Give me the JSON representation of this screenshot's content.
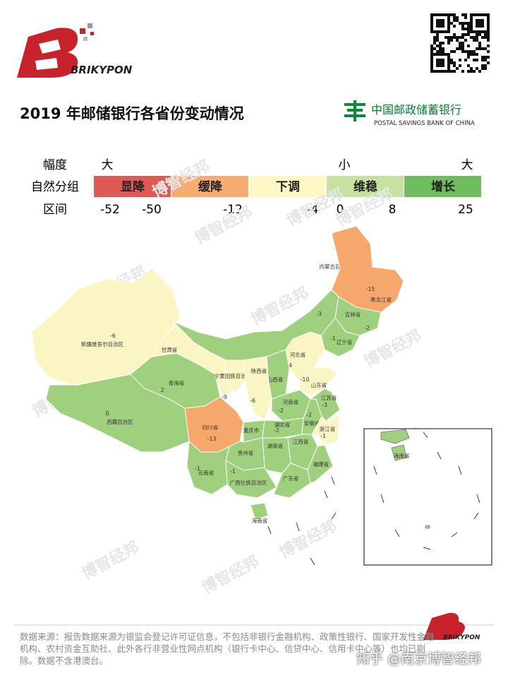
{
  "header": {
    "brand": "BRIKYPON",
    "title": "2019 年邮储银行各省份变动情况",
    "bank_name": "中国邮政储蓄银行",
    "bank_name_en": "POSTAL SAVINGS BANK OF CHINA"
  },
  "legend": {
    "scale_label": "幅度",
    "scale_marks": [
      "大",
      "小",
      "大"
    ],
    "group_label": "自然分组",
    "groups": [
      {
        "name": "显降",
        "color": "#e05a55"
      },
      {
        "name": "缓降",
        "color": "#f7ad72"
      },
      {
        "name": "下调",
        "color": "#fdf8c6"
      },
      {
        "name": "维稳",
        "color": "#c5e39f"
      },
      {
        "name": "增长",
        "color": "#6fbd5e"
      }
    ],
    "range_label": "区间",
    "range_values": [
      -52,
      -50,
      -12,
      -4,
      0,
      8,
      25
    ]
  },
  "map": {
    "regions": [
      {
        "name": "新疆维吾尔自治区",
        "value": -6,
        "color": "#fbf5c4"
      },
      {
        "name": "西藏自治区",
        "value": 0,
        "color": "#9fd07d"
      },
      {
        "name": "青海省",
        "value": 2,
        "color": "#9fd07d"
      },
      {
        "name": "甘肃省",
        "color": "#fbf5c4"
      },
      {
        "name": "内蒙古自治区",
        "value": -3,
        "color": "#9fd07d"
      },
      {
        "name": "黑龙江省",
        "value": -15,
        "color": "#f6a86c"
      },
      {
        "name": "吉林省",
        "value": -2,
        "color": "#9fd07d"
      },
      {
        "name": "辽宁省",
        "value": -1,
        "color": "#9fd07d"
      },
      {
        "name": "河北省",
        "value": -4,
        "color": "#fbf5c4"
      },
      {
        "name": "山西省",
        "value": -2,
        "color": "#9fd07d"
      },
      {
        "name": "山东省",
        "value": -10,
        "color": "#fbf5c4"
      },
      {
        "name": "宁夏回族自治区",
        "value": -9,
        "color": "#fbf5c4"
      },
      {
        "name": "陕西省",
        "value": -6,
        "color": "#fbf5c4"
      },
      {
        "name": "河南省",
        "value": -2,
        "color": "#9fd07d"
      },
      {
        "name": "四川省",
        "value": -13,
        "color": "#f6a86c"
      },
      {
        "name": "重庆市",
        "color": "#9fd07d"
      },
      {
        "name": "湖北省",
        "value": -2,
        "color": "#9fd07d"
      },
      {
        "name": "安徽省",
        "value": -2,
        "color": "#9fd07d"
      },
      {
        "name": "江苏省",
        "value": -3,
        "color": "#9fd07d"
      },
      {
        "name": "浙江省",
        "value": -1,
        "color": "#fbf5c4"
      },
      {
        "name": "江西省",
        "color": "#9fd07d"
      },
      {
        "name": "湖南省",
        "color": "#9fd07d"
      },
      {
        "name": "贵州省",
        "color": "#9fd07d"
      },
      {
        "name": "云南省",
        "value": -1,
        "color": "#9fd07d"
      },
      {
        "name": "广西壮族自治区",
        "value": -1,
        "color": "#9fd07d"
      },
      {
        "name": "广东省",
        "color": "#9fd07d"
      },
      {
        "name": "福建省",
        "color": "#9fd07d"
      },
      {
        "name": "海南省",
        "color": "#9fd07d"
      }
    ],
    "inset_label": "海南省"
  },
  "watermark": "博智经邦",
  "footer": {
    "source": "数据来源：报告数据来源为银监会登记许可证信息，不包括非银行金融机构、政策性银行、国家开发性金融机构、农村资金互助社、此外各行非营业性网点机构（银行卡中心、信贷中心、信用卡中心等）也均已剔除。数据不含港澳台。",
    "credit": "知乎 @南京博智经邦"
  }
}
